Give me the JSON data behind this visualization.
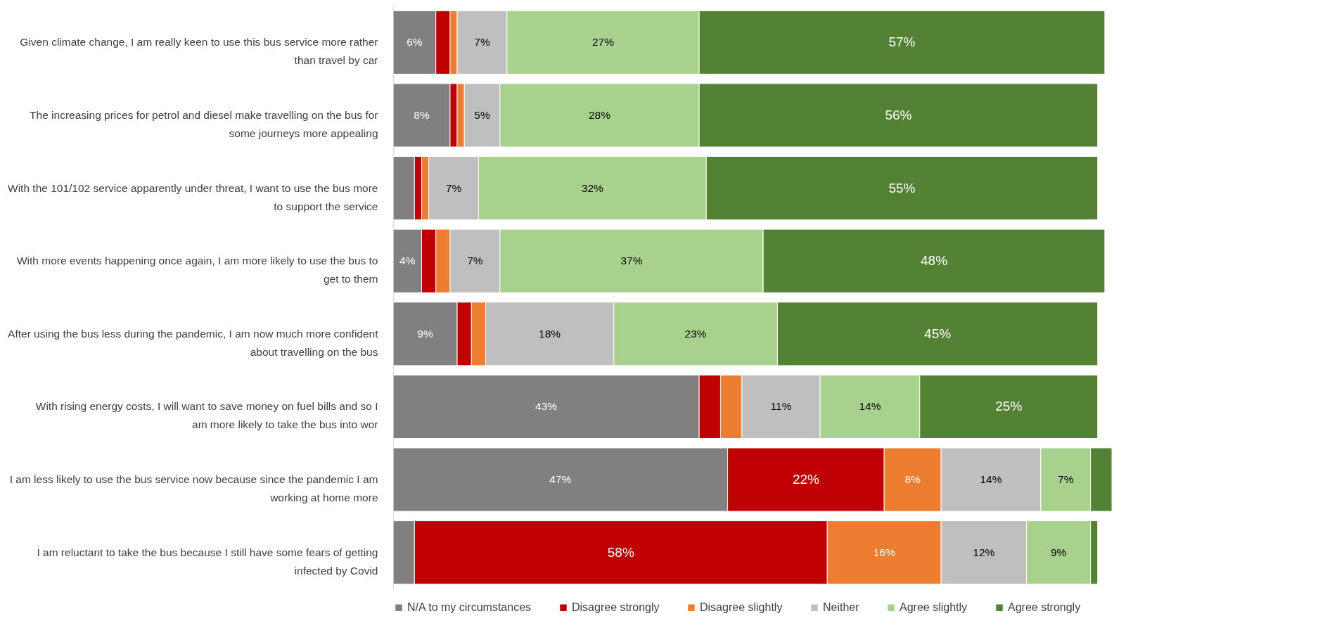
{
  "chart_data": {
    "type": "bar",
    "orientation": "horizontal",
    "stacked": true,
    "legend": "bottom",
    "categories": [
      "Given climate change, I am really keen to use this bus service more rather than travel by car",
      "The increasing prices for petrol and diesel make travelling on the bus for some journeys more appealing",
      "With the 101/102 service apparently under threat, I want to use the bus more to support the service",
      "With more events happening once again, I am more likely to use the bus to get to them",
      "After using the bus less during the pandemic, I am now much more confident about travelling on the bus",
      "With rising energy costs, I will want to save money on fuel bills and so I am more likely to take the bus into wor",
      "I am less likely to use the bus service now because since the pandemic I am working at home more",
      "I am reluctant to take the bus because I still have some fears of getting infected by Covid"
    ],
    "series": [
      {
        "name": "N/A to my circumstances",
        "color": "#808080",
        "values": [
          6,
          8,
          3,
          4,
          9,
          43,
          47,
          3
        ],
        "value_labels": [
          "6%",
          "8%",
          null,
          "4%",
          "9%",
          "43%",
          "47%",
          null
        ]
      },
      {
        "name": "Disagree strongly",
        "color": "#c00000",
        "values": [
          2,
          1,
          1,
          2,
          2,
          3,
          22,
          58
        ],
        "value_labels": [
          null,
          null,
          null,
          null,
          null,
          null,
          "22%",
          "58%"
        ]
      },
      {
        "name": "Disagree slightly",
        "color": "#ed7d31",
        "values": [
          1,
          1,
          1,
          2,
          2,
          3,
          8,
          16
        ],
        "value_labels": [
          null,
          null,
          null,
          null,
          null,
          null,
          "8%",
          "16%"
        ]
      },
      {
        "name": "Neither",
        "color": "#bfbfbf",
        "values": [
          7,
          5,
          7,
          7,
          18,
          11,
          14,
          12
        ],
        "value_labels": [
          "7%",
          "5%",
          "7%",
          "7%",
          "18%",
          "11%",
          "14%",
          "12%"
        ]
      },
      {
        "name": "Agree slightly",
        "color": "#a9d18e",
        "values": [
          27,
          28,
          32,
          37,
          23,
          14,
          7,
          9
        ],
        "value_labels": [
          "27%",
          "28%",
          "32%",
          "37%",
          "23%",
          "14%",
          "7%",
          "9%"
        ]
      },
      {
        "name": "Agree strongly",
        "color": "#548235",
        "values": [
          57,
          56,
          55,
          48,
          45,
          25,
          3,
          1
        ],
        "value_labels": [
          "57%",
          "56%",
          "55%",
          "48%",
          "45%",
          "25%",
          null,
          null
        ]
      }
    ]
  }
}
